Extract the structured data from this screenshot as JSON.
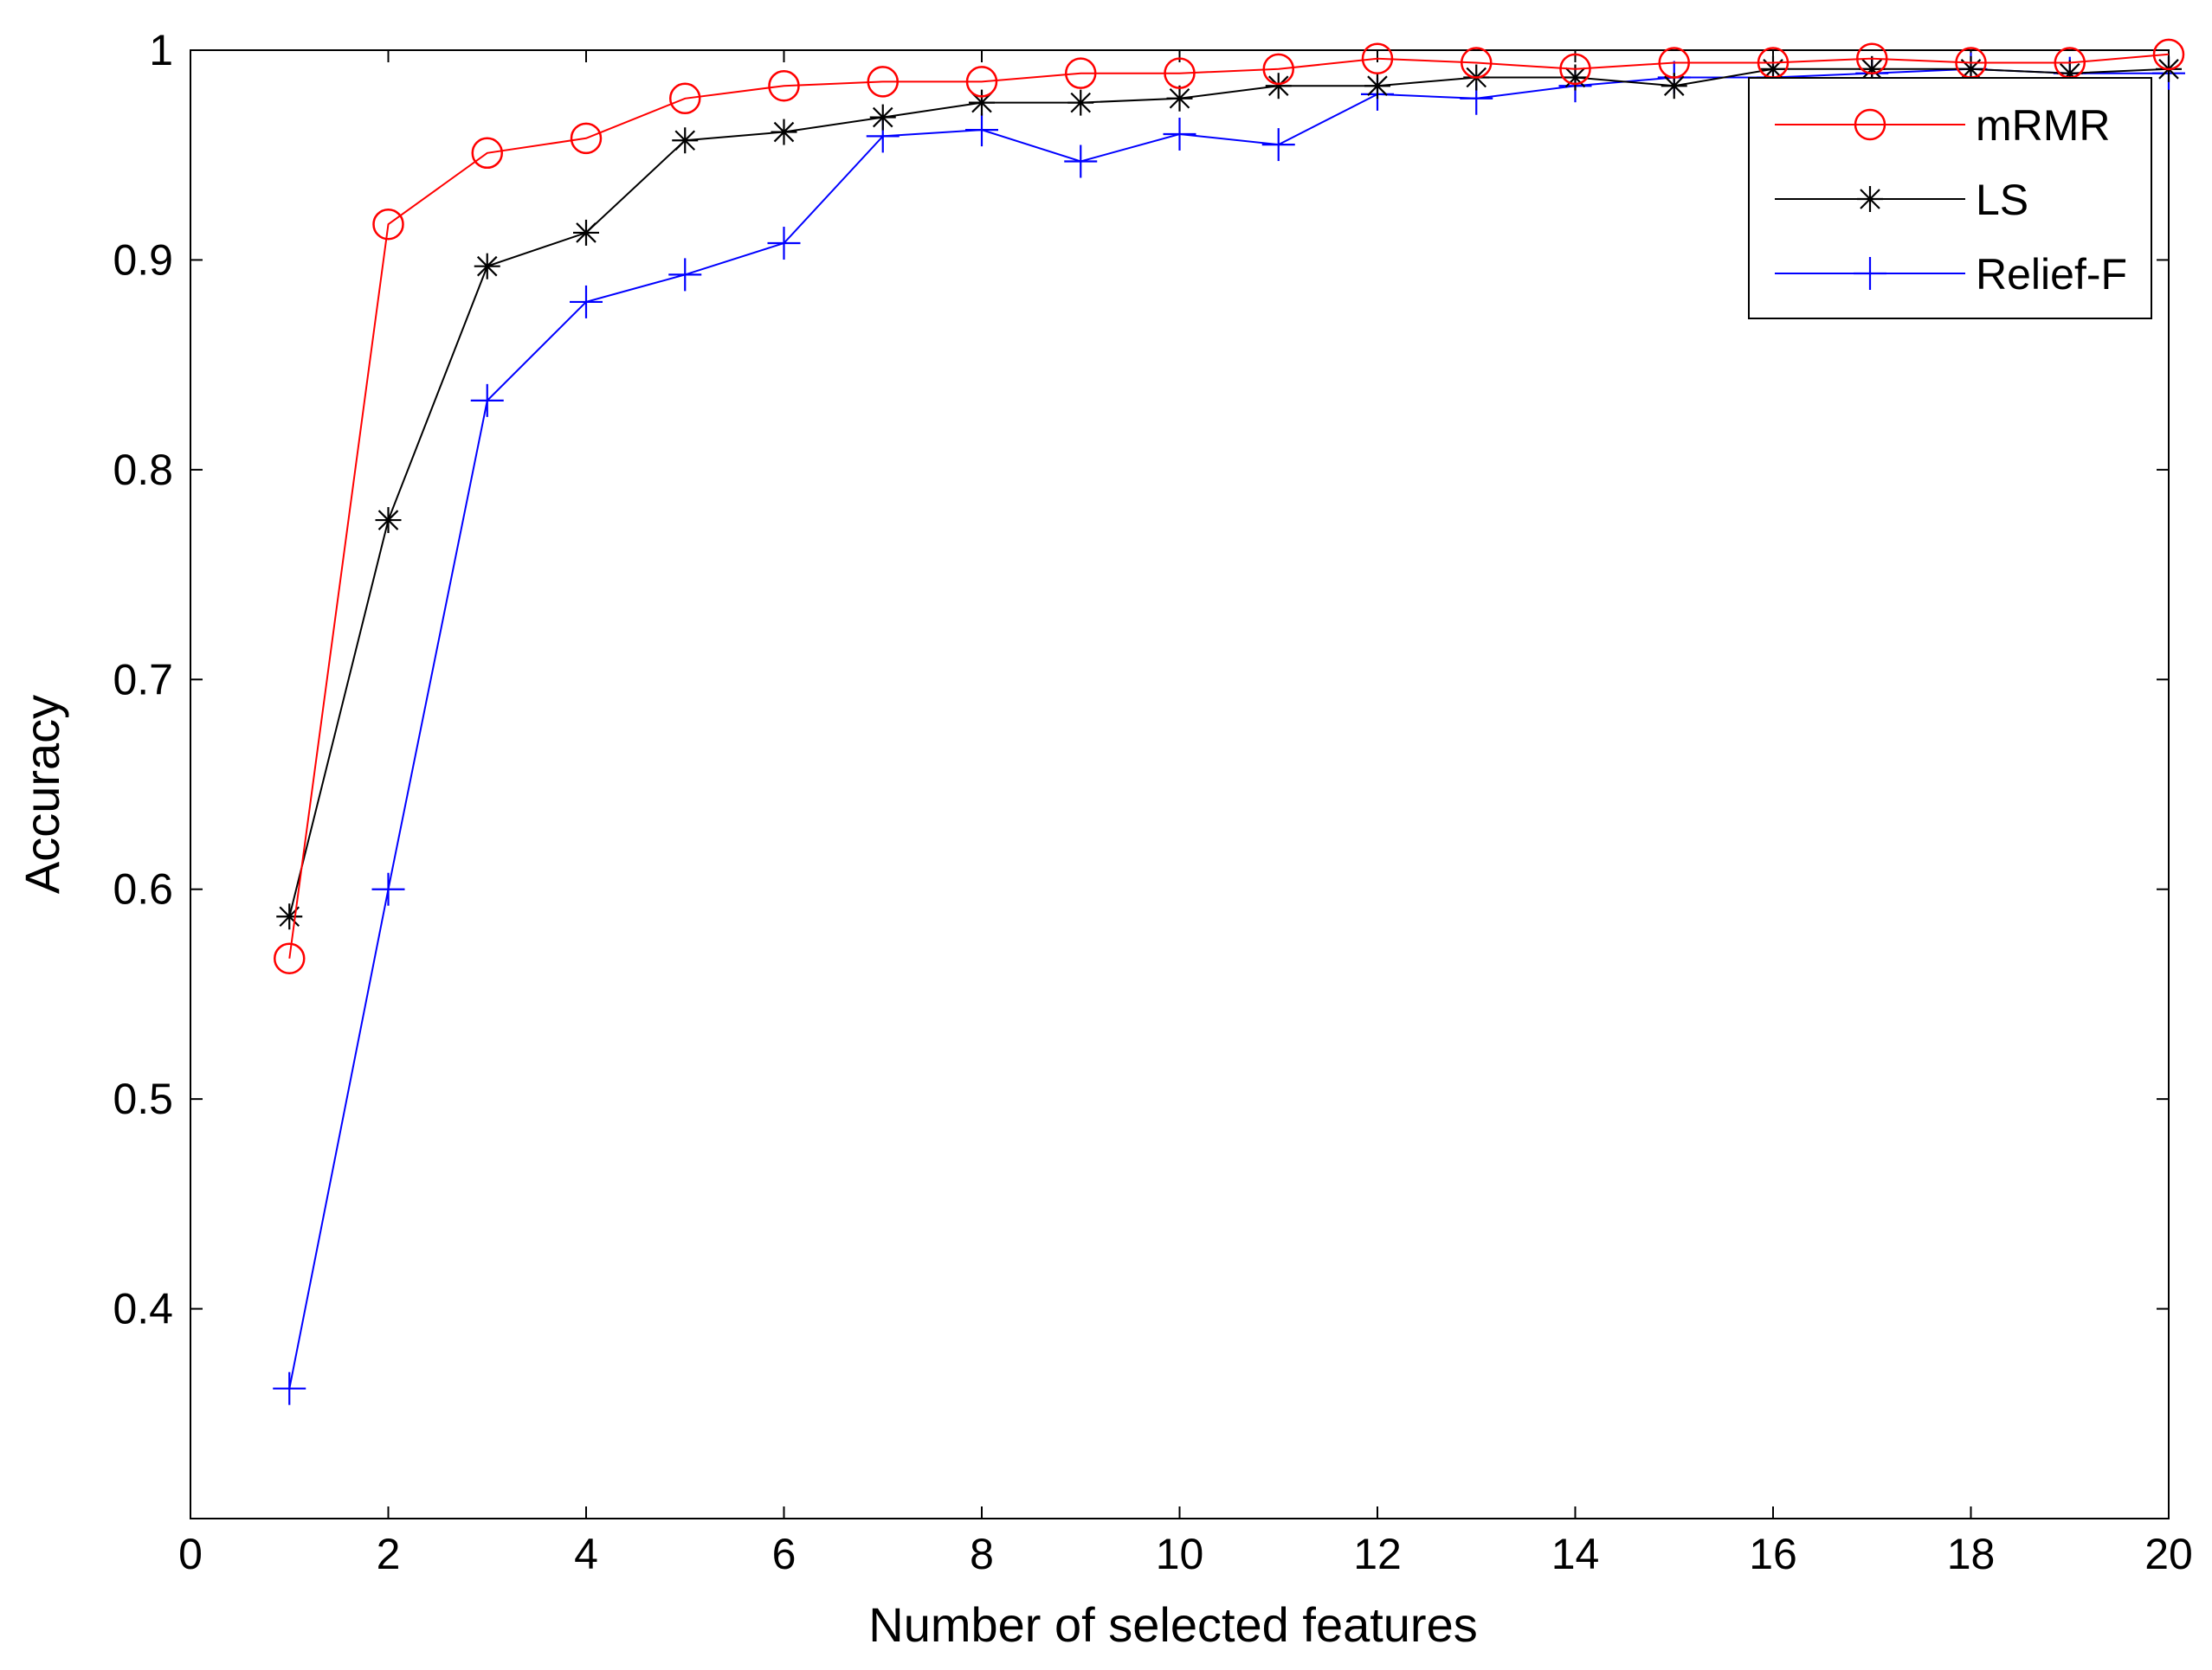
{
  "chart_data": {
    "type": "line",
    "title": "",
    "xlabel": "Number of selected features",
    "ylabel": "Accuracy",
    "xlim": [
      0,
      20
    ],
    "ylim": [
      0.3,
      1.0
    ],
    "xticks": [
      0,
      2,
      4,
      6,
      8,
      10,
      12,
      14,
      16,
      18,
      20
    ],
    "yticks": [
      0.4,
      0.5,
      0.6,
      0.7,
      0.8,
      0.9,
      1.0
    ],
    "xtick_labels": [
      "0",
      "2",
      "4",
      "6",
      "8",
      "10",
      "12",
      "14",
      "16",
      "18",
      "20"
    ],
    "ytick_labels": [
      "0.4",
      "0.5",
      "0.6",
      "0.7",
      "0.8",
      "0.9",
      "1"
    ],
    "grid": false,
    "legend_position": "top-right",
    "x": [
      1,
      2,
      3,
      4,
      5,
      6,
      7,
      8,
      9,
      10,
      11,
      12,
      13,
      14,
      15,
      16,
      17,
      18,
      19,
      20
    ],
    "series": [
      {
        "name": "mRMR",
        "color": "#ff0000",
        "marker": "circle",
        "values": [
          0.567,
          0.917,
          0.951,
          0.958,
          0.977,
          0.983,
          0.985,
          0.985,
          0.989,
          0.989,
          0.991,
          0.996,
          0.994,
          0.991,
          0.994,
          0.994,
          0.996,
          0.994,
          0.994,
          0.998
        ]
      },
      {
        "name": "LS",
        "color": "#000000",
        "marker": "asterisk",
        "values": [
          0.587,
          0.776,
          0.897,
          0.913,
          0.957,
          0.961,
          0.968,
          0.975,
          0.975,
          0.977,
          0.983,
          0.983,
          0.987,
          0.987,
          0.983,
          0.991,
          0.991,
          0.991,
          0.989,
          0.991
        ]
      },
      {
        "name": "Relief-F",
        "color": "#0000ff",
        "marker": "plus",
        "values": [
          0.362,
          0.6,
          0.833,
          0.88,
          0.893,
          0.908,
          0.959,
          0.962,
          0.947,
          0.96,
          0.955,
          0.979,
          0.977,
          0.983,
          0.987,
          0.987,
          0.989,
          0.991,
          0.989,
          0.989
        ]
      }
    ]
  }
}
